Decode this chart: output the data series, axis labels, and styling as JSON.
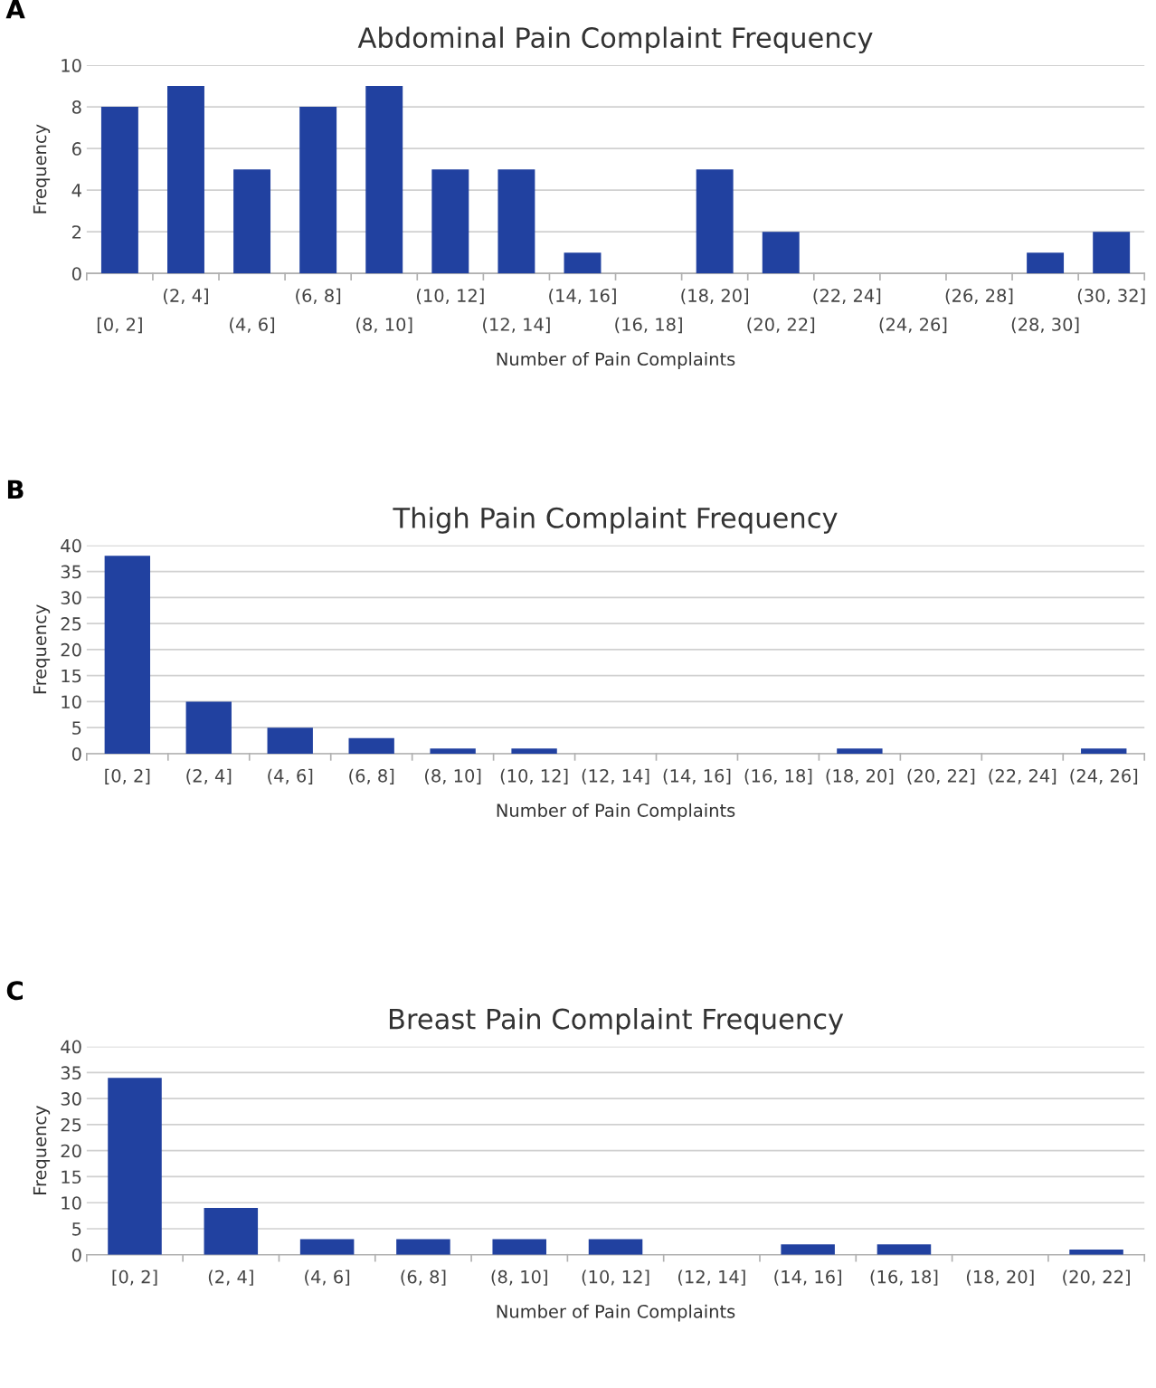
{
  "chart_data": [
    {
      "type": "bar",
      "title": "Abdominal Pain Complaint Frequency",
      "xlabel": "Number of Pain Complaints",
      "ylabel": "Frequency",
      "annotations": [
        "A"
      ],
      "color": "#2141a0",
      "grid": "y",
      "ylim": [
        0,
        10
      ],
      "yticks": [
        0,
        2,
        4,
        6,
        8,
        10
      ],
      "categories": [
        "[0, 2]",
        "(2, 4]",
        "(4, 6]",
        "(6, 8]",
        "(8, 10]",
        "(10, 12]",
        "(12, 14]",
        "(14, 16]",
        "(16, 18]",
        "(18, 20]",
        "(20, 22]",
        "(22, 24]",
        "(24, 26]",
        "(26, 28]",
        "(28, 30]",
        "(30, 32]"
      ],
      "values": [
        8,
        9,
        5,
        8,
        9,
        5,
        5,
        1,
        0,
        5,
        2,
        0,
        0,
        0,
        1,
        2
      ]
    },
    {
      "type": "bar",
      "title": "Thigh Pain Complaint Frequency",
      "xlabel": "Number of Pain Complaints",
      "ylabel": "Frequency",
      "annotations": [
        "B"
      ],
      "color": "#2141a0",
      "grid": "y",
      "ylim": [
        0,
        40
      ],
      "yticks": [
        0,
        5,
        10,
        15,
        20,
        25,
        30,
        35,
        40
      ],
      "categories": [
        "[0, 2]",
        "(2, 4]",
        "(4, 6]",
        "(6, 8]",
        "(8, 10]",
        "(10, 12]",
        "(12, 14]",
        "(14, 16]",
        "(16, 18]",
        "(18, 20]",
        "(20, 22]",
        "(22, 24]",
        "(24, 26]"
      ],
      "values": [
        38,
        10,
        5,
        3,
        1,
        1,
        0,
        0,
        0,
        1,
        0,
        0,
        1
      ]
    },
    {
      "type": "bar",
      "title": "Breast Pain Complaint Frequency",
      "xlabel": "Number of Pain Complaints",
      "ylabel": "Frequency",
      "annotations": [
        "C"
      ],
      "color": "#2141a0",
      "grid": "y",
      "ylim": [
        0,
        40
      ],
      "yticks": [
        0,
        5,
        10,
        15,
        20,
        25,
        30,
        35,
        40
      ],
      "categories": [
        "[0, 2]",
        "(2, 4]",
        "(4, 6]",
        "(6, 8]",
        "(8, 10]",
        "(10, 12]",
        "(12, 14]",
        "(14, 16]",
        "(16, 18]",
        "(18, 20]",
        "(20, 22]"
      ],
      "values": [
        34,
        9,
        3,
        3,
        3,
        3,
        0,
        2,
        2,
        0,
        1
      ]
    }
  ]
}
